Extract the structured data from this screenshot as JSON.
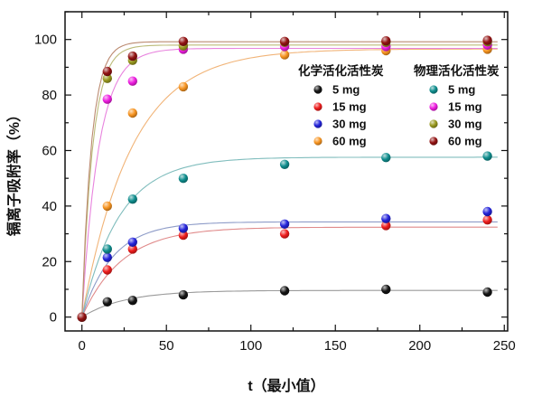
{
  "chart_data": {
    "type": "scatter",
    "title": "",
    "xlabel": "t（最小值）",
    "ylabel": "镉离子吸附率（%）",
    "xlim": [
      -10,
      252
    ],
    "ylim": [
      -5,
      110
    ],
    "xticks": [
      0,
      50,
      100,
      150,
      200,
      250
    ],
    "yticks": [
      0,
      20,
      40,
      60,
      80,
      100
    ],
    "x_minor_step": 25,
    "y_minor_step": 10,
    "grid": false,
    "x": [
      0,
      15,
      30,
      60,
      120,
      180,
      240
    ],
    "legend": {
      "position": "upper-center",
      "groups": [
        {
          "title": "化学活化活性炭",
          "items": [
            "5 mg",
            "15 mg",
            "30 mg",
            "60 mg"
          ]
        },
        {
          "title": "物理活化活性炭",
          "items": [
            "5 mg",
            "15 mg",
            "30 mg",
            "60 mg"
          ]
        }
      ]
    },
    "series": [
      {
        "group": "化学活化活性炭",
        "name": "5 mg",
        "color": "#141414",
        "line_color": "#9a9a9a",
        "values": [
          0,
          5.5,
          6,
          8,
          9.5,
          10,
          9
        ],
        "fit": {
          "A": 9.6,
          "k": 0.04
        }
      },
      {
        "group": "化学活化活性炭",
        "name": "15 mg",
        "color": "#ee1c1c",
        "line_color": "#e08a8a",
        "values": [
          0,
          17,
          24.5,
          29.5,
          30,
          33,
          35
        ],
        "fit": {
          "A": 32.4,
          "k": 0.042
        }
      },
      {
        "group": "化学活化活性炭",
        "name": "30 mg",
        "color": "#2323da",
        "line_color": "#8e9cc8",
        "values": [
          0,
          21.5,
          27,
          32,
          33.5,
          35.5,
          38
        ],
        "fit": {
          "A": 34.3,
          "k": 0.055
        }
      },
      {
        "group": "化学活化活性炭",
        "name": "60 mg",
        "color": "#f79420",
        "line_color": "#f1b478",
        "values": [
          0,
          40,
          73.5,
          83,
          94.5,
          96,
          96.5
        ],
        "fit": {
          "A": 96.6,
          "k": 0.034
        }
      },
      {
        "group": "物理活化活性炭",
        "name": "5 mg",
        "color": "#0e8d8d",
        "line_color": "#80bdbd",
        "values": [
          0,
          24.5,
          42.5,
          50,
          55,
          57.5,
          58
        ],
        "fit": {
          "A": 57.6,
          "k": 0.045
        }
      },
      {
        "group": "物理活化活性炭",
        "name": "15 mg",
        "color": "#ee1ce0",
        "line_color": "#e884de",
        "values": [
          0,
          78.5,
          85,
          96.5,
          97.5,
          97.5,
          98
        ],
        "fit": {
          "A": 96.8,
          "k": 0.1
        }
      },
      {
        "group": "物理活化活性炭",
        "name": "30 mg",
        "color": "#99991e",
        "line_color": "#bcbc7a",
        "values": [
          0,
          86,
          92.5,
          97.7,
          99,
          99,
          99.2
        ],
        "fit": {
          "A": 98.0,
          "k": 0.155
        }
      },
      {
        "group": "物理活化活性炭",
        "name": "60 mg",
        "color": "#921212",
        "line_color": "#bb8a70",
        "values": [
          0,
          88.5,
          94,
          99.3,
          99.3,
          99.5,
          99.7
        ],
        "fit": {
          "A": 99.2,
          "k": 0.175
        }
      }
    ]
  }
}
